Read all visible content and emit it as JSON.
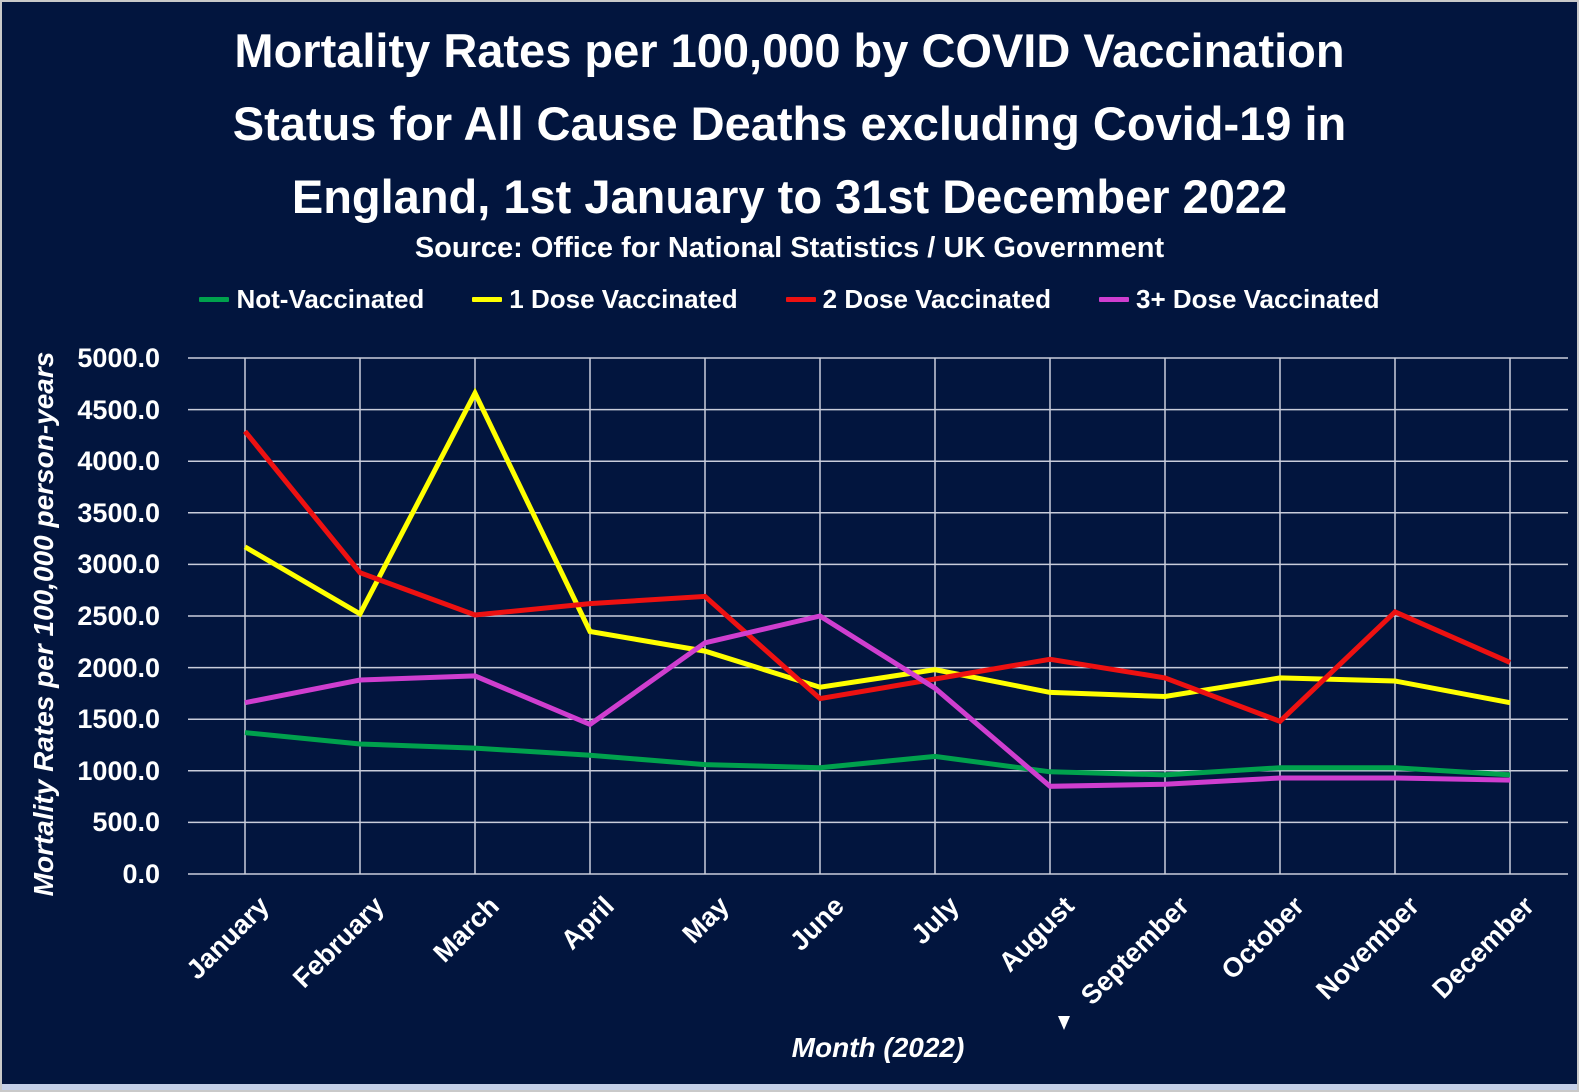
{
  "title": {
    "line1": "Mortality Rates per 100,000 by COVID Vaccination",
    "line2": "Status for All Cause Deaths excluding Covid-19 in",
    "line3": "England, 1st January to 31st December 2022"
  },
  "subtitle": "Source: Office for National Statistics / UK Government",
  "colors": {
    "background": "#02153E",
    "gridline": "#C9CDDB",
    "text": "#FFFFFF",
    "border": "#C9C9C9",
    "bottom_strip": "#C5D0E8"
  },
  "chart_data": {
    "type": "line",
    "title": "Mortality Rates per 100,000 by COVID Vaccination Status for All Cause Deaths excluding Covid-19 in England, 1st January to 31st December 2022",
    "subtitle": "Source: Office for National Statistics / UK Government",
    "categories": [
      "January",
      "February",
      "March",
      "April",
      "May",
      "June",
      "July",
      "August",
      "September",
      "October",
      "November",
      "December"
    ],
    "series": [
      {
        "name": "Not-Vaccinated",
        "color": "#00A14D",
        "values": [
          1370,
          1260,
          1220,
          1150,
          1060,
          1030,
          1140,
          990,
          960,
          1030,
          1030,
          960
        ]
      },
      {
        "name": "1 Dose Vaccinated",
        "color": "#FFFF00",
        "values": [
          3170,
          2520,
          4660,
          2350,
          2160,
          1810,
          1980,
          1760,
          1720,
          1900,
          1870,
          1660
        ]
      },
      {
        "name": "2 Dose Vaccinated",
        "color": "#ED1111",
        "values": [
          4290,
          2920,
          2510,
          2620,
          2690,
          1700,
          1890,
          2080,
          1900,
          1480,
          2540,
          2050
        ]
      },
      {
        "name": "3+ Dose Vaccinated",
        "color": "#CF3ECF",
        "values": [
          1660,
          1880,
          1920,
          1450,
          2240,
          2500,
          1800,
          850,
          870,
          930,
          930,
          910
        ]
      }
    ],
    "xlabel": "Month (2022)",
    "ylabel": "Mortality Rates per 100,000 person-years",
    "ylim": [
      0,
      5000
    ],
    "ytick_step": 500,
    "ytick_labels": [
      "0.0",
      "500.0",
      "1000.0",
      "1500.0",
      "2000.0",
      "2500.0",
      "3000.0",
      "3500.0",
      "4000.0",
      "4500.0",
      "5000.0"
    ],
    "grid": true,
    "legend_position": "top"
  }
}
